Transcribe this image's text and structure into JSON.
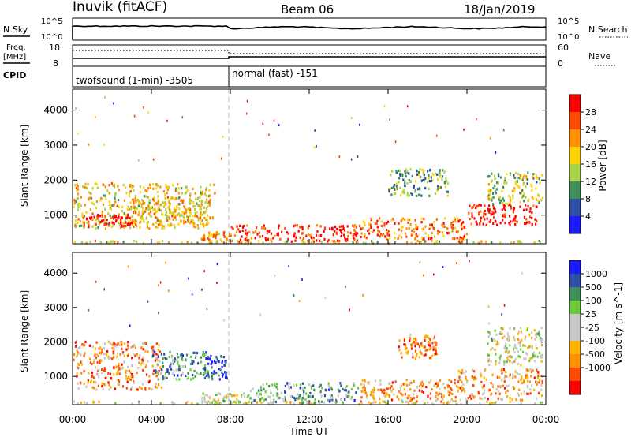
{
  "header": {
    "station": "Inuvik (fitACF)",
    "beam": "Beam 06",
    "date": "18/Jan/2019"
  },
  "panels": {
    "nsky": {
      "label": "N.Sky",
      "right_label": "N.Search",
      "ticks_left": [
        "10^5",
        "10^0"
      ],
      "ticks_right": [
        "10^5",
        "10^0"
      ]
    },
    "freq": {
      "label_line1": "Freq.",
      "label_line2": "[MHz]",
      "right_label": "Nave",
      "ticks_left": [
        "18",
        "8"
      ],
      "ticks_right": [
        "60",
        "0"
      ]
    },
    "cpid": {
      "label": "CPID",
      "modes": [
        "twofsound (1-min) -3505",
        "normal (fast) -151"
      ]
    }
  },
  "colors": {
    "power_scale": [
      "#1a1aff",
      "#2d4fa8",
      "#3f8f5a",
      "#a8d44a",
      "#ffd400",
      "#ff9000",
      "#ff4a00",
      "#ff0000"
    ],
    "velocity_scale": [
      "#ff0000",
      "#ff4a00",
      "#ff9000",
      "#ffb400",
      "#c8c8c8",
      "#c8c8c8",
      "#6acb3a",
      "#3f8f5a",
      "#2d4fa8",
      "#1a1aff"
    ]
  },
  "chart_data": [
    {
      "type": "heatmap",
      "name": "power",
      "xlabel": "",
      "ylabel": "Slant Range [km]",
      "x_ticks": [
        "00:00",
        "04:00",
        "08:00",
        "12:00",
        "16:00",
        "20:00",
        "00:00"
      ],
      "xlim_hours": [
        0,
        24
      ],
      "y_ticks": [
        1000,
        2000,
        3000,
        4000
      ],
      "ylim": [
        180,
        4600
      ],
      "colorbar_label": "Power [dB]",
      "colorbar_ticks": [
        "4",
        "8",
        "12",
        "16",
        "20",
        "24",
        "28"
      ],
      "regions": [
        {
          "t0": 0.0,
          "t1": 7.2,
          "r0": 600,
          "r1": 1900,
          "level": 0.55
        },
        {
          "t0": 0.5,
          "t1": 3.0,
          "r0": 650,
          "r1": 1000,
          "level": 0.95
        },
        {
          "t0": 3.0,
          "t1": 7.0,
          "r0": 700,
          "r1": 1500,
          "level": 0.6
        },
        {
          "t0": 6.5,
          "t1": 8.0,
          "r0": 250,
          "r1": 500,
          "level": 0.7
        },
        {
          "t0": 8.0,
          "t1": 14.5,
          "r0": 220,
          "r1": 700,
          "level": 0.9
        },
        {
          "t0": 14.5,
          "t1": 20.0,
          "r0": 300,
          "r1": 900,
          "level": 0.75
        },
        {
          "t0": 16.0,
          "t1": 19.0,
          "r0": 1500,
          "r1": 2300,
          "level": 0.35
        },
        {
          "t0": 20.0,
          "t1": 23.5,
          "r0": 700,
          "r1": 1300,
          "level": 0.95
        },
        {
          "t0": 21.0,
          "t1": 23.8,
          "r0": 1300,
          "r1": 2200,
          "level": 0.45
        },
        {
          "t0": 0.0,
          "t1": 24.0,
          "r0": 180,
          "r1": 260,
          "level": 0.55
        }
      ]
    },
    {
      "type": "heatmap",
      "name": "velocity",
      "xlabel": "Time UT",
      "ylabel": "Slant Range [km]",
      "x_ticks": [
        "00:00",
        "04:00",
        "08:00",
        "12:00",
        "16:00",
        "20:00",
        "00:00"
      ],
      "xlim_hours": [
        0,
        24
      ],
      "y_ticks": [
        1000,
        2000,
        3000,
        4000
      ],
      "ylim": [
        180,
        4600
      ],
      "colorbar_label": "Velocity [m s^-1]",
      "colorbar_ticks": [
        "1000",
        "500",
        "100",
        "25",
        "-25",
        "-100",
        "-500",
        "-1000"
      ],
      "regions": [
        {
          "t0": 0.0,
          "t1": 4.5,
          "r0": 600,
          "r1": 2000,
          "level": 0.28
        },
        {
          "t0": 4.0,
          "t1": 6.8,
          "r0": 900,
          "r1": 1700,
          "level": 0.75
        },
        {
          "t0": 6.8,
          "t1": 7.8,
          "r0": 900,
          "r1": 1600,
          "level": 0.92
        },
        {
          "t0": 6.5,
          "t1": 9.0,
          "r0": 200,
          "r1": 500,
          "level": 0.5
        },
        {
          "t0": 9.0,
          "t1": 14.5,
          "r0": 220,
          "r1": 800,
          "level": 0.7
        },
        {
          "t0": 14.5,
          "t1": 19.5,
          "r0": 250,
          "r1": 900,
          "level": 0.3
        },
        {
          "t0": 16.5,
          "t1": 18.5,
          "r0": 1500,
          "r1": 2200,
          "level": 0.25
        },
        {
          "t0": 19.5,
          "t1": 23.8,
          "r0": 300,
          "r1": 1200,
          "level": 0.3
        },
        {
          "t0": 21.0,
          "t1": 23.8,
          "r0": 1300,
          "r1": 2400,
          "level": 0.5
        },
        {
          "t0": 0.0,
          "t1": 24.0,
          "r0": 180,
          "r1": 260,
          "level": 0.5
        }
      ]
    }
  ]
}
